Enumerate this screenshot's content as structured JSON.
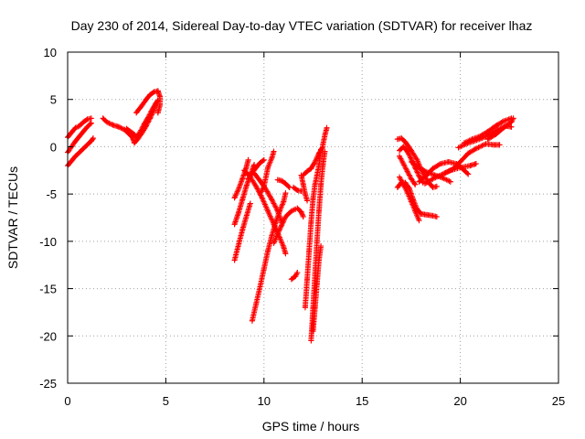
{
  "chart_data": {
    "type": "scatter",
    "title": "Day 230 of 2014, Sidereal Day-to-day VTEC variation (SDTVAR) for receiver lhaz",
    "xlabel": "GPS time / hours",
    "ylabel": "SDTVAR / TECUs",
    "xlim": [
      0,
      25
    ],
    "ylim": [
      -25,
      10
    ],
    "xticks": [
      "0",
      "5",
      "10",
      "15",
      "20",
      "25"
    ],
    "yticks": [
      "10",
      "5",
      "0",
      "-5",
      "-10",
      "-15",
      "-20",
      "-25"
    ],
    "grid": true,
    "marker": "+",
    "color": "#ff0000",
    "series": [
      {
        "points": [
          [
            0.0,
            1.0
          ],
          [
            0.2,
            1.5
          ],
          [
            0.4,
            2.0
          ],
          [
            0.6,
            2.2
          ],
          [
            0.8,
            2.6
          ],
          [
            1.0,
            2.9
          ],
          [
            1.2,
            3.0
          ]
        ]
      },
      {
        "points": [
          [
            0.0,
            -0.6
          ],
          [
            0.2,
            0.0
          ],
          [
            0.4,
            0.6
          ],
          [
            0.6,
            1.1
          ],
          [
            0.8,
            1.6
          ],
          [
            1.0,
            2.1
          ],
          [
            1.2,
            2.5
          ]
        ]
      },
      {
        "points": [
          [
            0.0,
            -2.0
          ],
          [
            0.2,
            -1.5
          ],
          [
            0.4,
            -1.0
          ],
          [
            0.6,
            -0.6
          ],
          [
            0.8,
            -0.2
          ],
          [
            1.0,
            0.2
          ],
          [
            1.2,
            0.6
          ],
          [
            1.3,
            0.9
          ]
        ]
      },
      {
        "points": [
          [
            1.8,
            3.0
          ],
          [
            2.0,
            2.6
          ],
          [
            2.3,
            2.3
          ],
          [
            2.6,
            2.1
          ],
          [
            2.9,
            1.8
          ],
          [
            3.1,
            1.4
          ],
          [
            3.3,
            1.0
          ],
          [
            3.4,
            0.4
          ],
          [
            3.6,
            0.9
          ],
          [
            3.8,
            1.5
          ],
          [
            4.0,
            2.2
          ],
          [
            4.2,
            3.0
          ],
          [
            4.4,
            3.9
          ],
          [
            4.5,
            4.6
          ],
          [
            4.6,
            4.9
          ]
        ]
      },
      {
        "points": [
          [
            3.0,
            1.9
          ],
          [
            3.2,
            1.6
          ],
          [
            3.4,
            1.3
          ],
          [
            3.5,
            1.0
          ],
          [
            3.7,
            1.6
          ],
          [
            3.9,
            2.4
          ],
          [
            4.1,
            3.1
          ],
          [
            4.3,
            3.9
          ],
          [
            4.5,
            4.6
          ]
        ]
      },
      {
        "points": [
          [
            3.5,
            3.6
          ],
          [
            3.8,
            4.4
          ],
          [
            4.0,
            5.0
          ],
          [
            4.2,
            5.5
          ],
          [
            4.4,
            5.8
          ],
          [
            4.6,
            5.9
          ],
          [
            4.7,
            5.3
          ],
          [
            4.7,
            4.4
          ],
          [
            4.6,
            3.6
          ]
        ]
      },
      {
        "points": [
          [
            8.5,
            -5.4
          ],
          [
            8.7,
            -4.5
          ],
          [
            8.9,
            -3.4
          ],
          [
            9.1,
            -2.2
          ],
          [
            9.2,
            -1.4
          ]
        ]
      },
      {
        "points": [
          [
            8.5,
            -8.2
          ],
          [
            8.7,
            -7.0
          ],
          [
            8.9,
            -5.6
          ],
          [
            9.1,
            -4.2
          ],
          [
            9.3,
            -3.0
          ],
          [
            9.5,
            -1.9
          ]
        ]
      },
      {
        "points": [
          [
            8.5,
            -12.0
          ],
          [
            8.7,
            -10.4
          ],
          [
            8.9,
            -8.8
          ],
          [
            9.1,
            -7.4
          ],
          [
            9.3,
            -6.0
          ]
        ]
      },
      {
        "points": [
          [
            9.0,
            -2.5
          ],
          [
            9.3,
            -3.2
          ],
          [
            9.6,
            -4.2
          ],
          [
            9.9,
            -5.4
          ],
          [
            10.2,
            -6.8
          ],
          [
            10.5,
            -8.2
          ],
          [
            10.8,
            -9.6
          ],
          [
            11.0,
            -10.6
          ],
          [
            11.1,
            -11.3
          ]
        ]
      },
      {
        "points": [
          [
            9.5,
            -2.8
          ],
          [
            9.8,
            -3.6
          ],
          [
            10.1,
            -4.5
          ],
          [
            10.4,
            -5.6
          ],
          [
            10.7,
            -6.8
          ],
          [
            10.9,
            -8.0
          ]
        ]
      },
      {
        "points": [
          [
            9.2,
            -3.4
          ],
          [
            9.4,
            -2.8
          ],
          [
            9.6,
            -2.2
          ],
          [
            9.8,
            -1.7
          ],
          [
            10.0,
            -1.4
          ]
        ]
      },
      {
        "points": [
          [
            9.8,
            -5.0
          ],
          [
            10.0,
            -4.2
          ],
          [
            10.1,
            -3.2
          ],
          [
            10.2,
            -2.2
          ],
          [
            10.4,
            -1.2
          ],
          [
            10.5,
            -0.5
          ]
        ]
      },
      {
        "points": [
          [
            9.4,
            -18.4
          ],
          [
            9.6,
            -16.6
          ],
          [
            9.8,
            -14.8
          ],
          [
            10.0,
            -12.9
          ],
          [
            10.2,
            -11.0
          ],
          [
            10.4,
            -9.4
          ],
          [
            10.6,
            -8.0
          ],
          [
            10.8,
            -6.8
          ],
          [
            11.0,
            -5.8
          ],
          [
            11.1,
            -4.9
          ]
        ]
      },
      {
        "points": [
          [
            10.5,
            -10.2
          ],
          [
            10.7,
            -9.2
          ],
          [
            10.9,
            -8.3
          ],
          [
            11.1,
            -7.4
          ],
          [
            11.4,
            -6.8
          ],
          [
            11.6,
            -6.6
          ]
        ]
      },
      {
        "points": [
          [
            10.7,
            -3.5
          ],
          [
            10.9,
            -3.6
          ],
          [
            11.1,
            -3.9
          ],
          [
            11.3,
            -4.3
          ]
        ]
      },
      {
        "points": [
          [
            11.4,
            -14.0
          ],
          [
            11.6,
            -13.7
          ],
          [
            11.7,
            -13.3
          ]
        ]
      },
      {
        "points": [
          [
            11.5,
            -4.3
          ],
          [
            11.7,
            -4.6
          ],
          [
            11.9,
            -4.7
          ]
        ]
      },
      {
        "points": [
          [
            11.7,
            -6.5
          ],
          [
            11.9,
            -6.9
          ],
          [
            12.0,
            -7.4
          ]
        ]
      },
      {
        "points": [
          [
            11.9,
            -3.0
          ],
          [
            12.0,
            -4.0
          ],
          [
            12.1,
            -5.0
          ],
          [
            12.2,
            -5.7
          ]
        ]
      },
      {
        "points": [
          [
            12.0,
            -3.0
          ],
          [
            12.2,
            -2.6
          ],
          [
            12.4,
            -2.3
          ],
          [
            12.6,
            -1.6
          ],
          [
            12.8,
            -0.7
          ],
          [
            13.0,
            0.0
          ]
        ]
      },
      {
        "points": [
          [
            12.1,
            -17.0
          ],
          [
            12.2,
            -14.0
          ],
          [
            12.3,
            -11.0
          ],
          [
            12.4,
            -8.0
          ],
          [
            12.5,
            -5.5
          ],
          [
            12.6,
            -4.0
          ],
          [
            12.8,
            -2.0
          ],
          [
            12.9,
            -0.3
          ]
        ]
      },
      {
        "points": [
          [
            12.4,
            -20.5
          ],
          [
            12.5,
            -17.0
          ],
          [
            12.6,
            -13.5
          ],
          [
            12.7,
            -10.0
          ],
          [
            12.8,
            -6.8
          ],
          [
            12.9,
            -4.0
          ],
          [
            13.0,
            -2.0
          ],
          [
            13.1,
            -0.5
          ]
        ]
      },
      {
        "points": [
          [
            12.5,
            -19.5
          ],
          [
            12.6,
            -17.0
          ],
          [
            12.7,
            -14.5
          ],
          [
            12.8,
            -12.0
          ],
          [
            12.9,
            -10.5
          ]
        ]
      },
      {
        "points": [
          [
            13.0,
            0.2
          ],
          [
            13.1,
            1.2
          ],
          [
            13.2,
            2.0
          ]
        ]
      },
      {
        "points": [
          [
            16.8,
            -4.3
          ],
          [
            17.0,
            -3.8
          ],
          [
            17.2,
            -3.8
          ],
          [
            17.4,
            -4.4
          ],
          [
            17.6,
            -5.6
          ],
          [
            17.8,
            -6.6
          ],
          [
            18.0,
            -7.1
          ],
          [
            18.3,
            -7.2
          ],
          [
            18.6,
            -7.3
          ],
          [
            18.8,
            -7.4
          ]
        ]
      },
      {
        "points": [
          [
            16.9,
            -3.2
          ],
          [
            17.1,
            -4.0
          ],
          [
            17.3,
            -4.8
          ],
          [
            17.5,
            -5.8
          ],
          [
            17.7,
            -6.8
          ],
          [
            17.9,
            -7.8
          ]
        ]
      },
      {
        "points": [
          [
            16.9,
            -1.0
          ],
          [
            17.1,
            -1.8
          ],
          [
            17.3,
            -2.6
          ],
          [
            17.5,
            -3.4
          ],
          [
            17.7,
            -4.0
          ]
        ]
      },
      {
        "points": [
          [
            16.8,
            0.8
          ],
          [
            17.0,
            0.9
          ],
          [
            17.2,
            0.5
          ],
          [
            17.5,
            -0.4
          ],
          [
            17.8,
            -1.4
          ],
          [
            18.0,
            -2.4
          ],
          [
            18.2,
            -3.2
          ],
          [
            18.4,
            -3.8
          ],
          [
            18.6,
            -4.3
          ],
          [
            18.8,
            -4.2
          ]
        ]
      },
      {
        "points": [
          [
            16.9,
            -0.4
          ],
          [
            17.1,
            0.0
          ],
          [
            17.3,
            -0.5
          ],
          [
            17.5,
            -1.3
          ],
          [
            17.7,
            -2.2
          ],
          [
            17.9,
            -3.1
          ],
          [
            18.1,
            -3.8
          ]
        ]
      },
      {
        "points": [
          [
            17.9,
            -3.7
          ],
          [
            18.3,
            -3.0
          ],
          [
            18.6,
            -2.3
          ],
          [
            19.0,
            -1.8
          ],
          [
            19.4,
            -1.6
          ],
          [
            19.8,
            -1.8
          ],
          [
            20.1,
            -2.3
          ],
          [
            20.4,
            -2.9
          ]
        ]
      },
      {
        "points": [
          [
            18.2,
            -3.9
          ],
          [
            18.6,
            -3.4
          ],
          [
            19.0,
            -3.0
          ],
          [
            19.5,
            -2.5
          ],
          [
            20.0,
            -2.2
          ],
          [
            20.5,
            -2.0
          ],
          [
            20.8,
            -1.8
          ]
        ]
      },
      {
        "points": [
          [
            17.5,
            -1.6
          ],
          [
            17.9,
            -2.2
          ],
          [
            18.3,
            -2.7
          ],
          [
            18.7,
            -3.0
          ],
          [
            19.1,
            -3.3
          ],
          [
            19.5,
            -3.7
          ]
        ]
      },
      {
        "points": [
          [
            19.9,
            -0.1
          ],
          [
            20.3,
            0.3
          ],
          [
            20.7,
            0.6
          ],
          [
            21.1,
            0.9
          ],
          [
            21.5,
            1.3
          ],
          [
            21.9,
            1.8
          ],
          [
            22.3,
            2.2
          ],
          [
            22.6,
            2.1
          ]
        ]
      },
      {
        "points": [
          [
            20.2,
            0.4
          ],
          [
            20.6,
            0.8
          ],
          [
            21.0,
            1.1
          ],
          [
            21.4,
            1.6
          ],
          [
            21.8,
            2.2
          ],
          [
            22.2,
            2.7
          ],
          [
            22.6,
            3.0
          ]
        ]
      },
      {
        "points": [
          [
            21.4,
            0.8
          ],
          [
            21.8,
            1.3
          ],
          [
            22.2,
            2.0
          ],
          [
            22.6,
            2.6
          ],
          [
            22.7,
            3.0
          ]
        ]
      },
      {
        "points": [
          [
            19.2,
            -2.8
          ],
          [
            19.6,
            -2.4
          ],
          [
            20.0,
            -1.6
          ],
          [
            20.4,
            -0.7
          ],
          [
            20.8,
            -0.2
          ],
          [
            21.3,
            0.3
          ],
          [
            21.7,
            0.2
          ],
          [
            22.0,
            0.2
          ]
        ]
      }
    ]
  }
}
